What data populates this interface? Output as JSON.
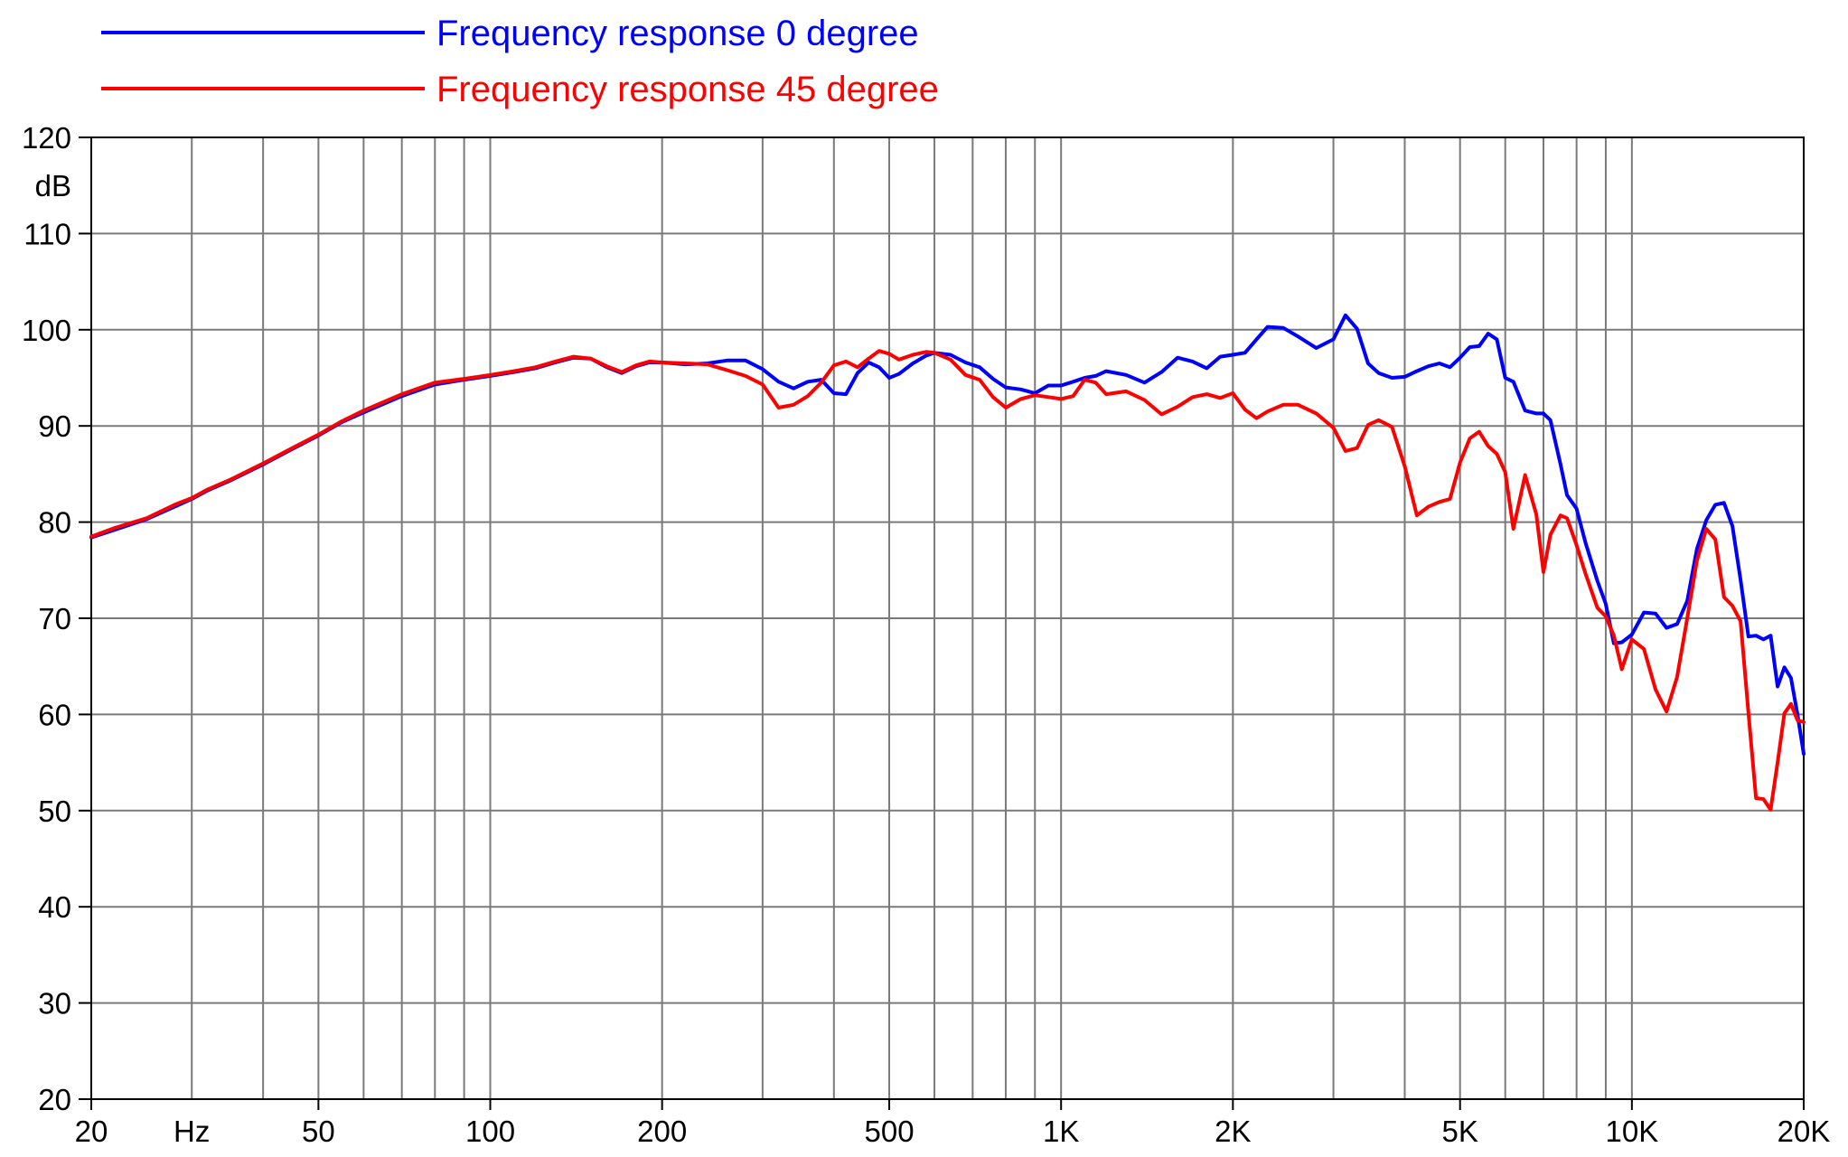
{
  "chart_data": {
    "type": "line",
    "xscale": "log",
    "xlim": [
      20,
      20000
    ],
    "ylim": [
      20,
      120
    ],
    "grid": true,
    "ylabel": "dB",
    "xlabel": "Hz",
    "yticks": [
      {
        "v": 120,
        "label": "120"
      },
      {
        "v": 110,
        "label": "110"
      },
      {
        "v": 100,
        "label": "100"
      },
      {
        "v": 90,
        "label": "90"
      },
      {
        "v": 80,
        "label": "80"
      },
      {
        "v": 70,
        "label": "70"
      },
      {
        "v": 60,
        "label": "60"
      },
      {
        "v": 50,
        "label": "50"
      },
      {
        "v": 40,
        "label": "40"
      },
      {
        "v": 30,
        "label": "30"
      },
      {
        "v": 20,
        "label": "20"
      }
    ],
    "xticks": [
      {
        "v": 20,
        "label": "20",
        "color": "#0000ff"
      },
      {
        "v": 50,
        "label": "50"
      },
      {
        "v": 100,
        "label": "100"
      },
      {
        "v": 200,
        "label": "200"
      },
      {
        "v": 500,
        "label": "500"
      },
      {
        "v": 1000,
        "label": "1K"
      },
      {
        "v": 2000,
        "label": "2K"
      },
      {
        "v": 5000,
        "label": "5K"
      },
      {
        "v": 10000,
        "label": "10K"
      },
      {
        "v": 20000,
        "label": "20K"
      }
    ],
    "xunit_label": {
      "text": "Hz",
      "at": 30,
      "color": "#0000ff"
    },
    "gridlines_x": [
      20,
      30,
      40,
      50,
      60,
      70,
      80,
      90,
      100,
      200,
      300,
      400,
      500,
      600,
      700,
      800,
      900,
      1000,
      2000,
      3000,
      4000,
      5000,
      6000,
      7000,
      8000,
      9000,
      10000,
      20000
    ],
    "legend_position": "top-left",
    "series": [
      {
        "name": "Frequency response 0 degree",
        "color": "#0000ff",
        "points": [
          [
            20,
            78.4
          ],
          [
            22,
            79.2
          ],
          [
            25,
            80.3
          ],
          [
            28,
            81.6
          ],
          [
            30,
            82.4
          ],
          [
            32,
            83.3
          ],
          [
            35,
            84.3
          ],
          [
            40,
            86.0
          ],
          [
            45,
            87.6
          ],
          [
            50,
            89.0
          ],
          [
            55,
            90.4
          ],
          [
            60,
            91.4
          ],
          [
            70,
            93.1
          ],
          [
            80,
            94.3
          ],
          [
            90,
            94.8
          ],
          [
            100,
            95.2
          ],
          [
            110,
            95.6
          ],
          [
            120,
            96.0
          ],
          [
            130,
            96.6
          ],
          [
            140,
            97.1
          ],
          [
            150,
            97.0
          ],
          [
            160,
            96.1
          ],
          [
            170,
            95.5
          ],
          [
            180,
            96.2
          ],
          [
            190,
            96.6
          ],
          [
            200,
            96.6
          ],
          [
            220,
            96.4
          ],
          [
            240,
            96.5
          ],
          [
            260,
            96.8
          ],
          [
            280,
            96.8
          ],
          [
            300,
            95.9
          ],
          [
            320,
            94.6
          ],
          [
            340,
            93.9
          ],
          [
            360,
            94.6
          ],
          [
            380,
            94.8
          ],
          [
            400,
            93.4
          ],
          [
            420,
            93.3
          ],
          [
            440,
            95.5
          ],
          [
            460,
            96.6
          ],
          [
            480,
            96.1
          ],
          [
            500,
            95.0
          ],
          [
            520,
            95.4
          ],
          [
            550,
            96.5
          ],
          [
            580,
            97.3
          ],
          [
            600,
            97.6
          ],
          [
            640,
            97.4
          ],
          [
            680,
            96.6
          ],
          [
            720,
            96.1
          ],
          [
            760,
            94.9
          ],
          [
            800,
            94.0
          ],
          [
            850,
            93.8
          ],
          [
            900,
            93.4
          ],
          [
            950,
            94.2
          ],
          [
            1000,
            94.2
          ],
          [
            1050,
            94.6
          ],
          [
            1100,
            95.0
          ],
          [
            1150,
            95.2
          ],
          [
            1200,
            95.7
          ],
          [
            1300,
            95.3
          ],
          [
            1400,
            94.5
          ],
          [
            1500,
            95.6
          ],
          [
            1600,
            97.1
          ],
          [
            1700,
            96.7
          ],
          [
            1800,
            96.0
          ],
          [
            1900,
            97.2
          ],
          [
            2000,
            97.4
          ],
          [
            2100,
            97.6
          ],
          [
            2200,
            99.0
          ],
          [
            2300,
            100.3
          ],
          [
            2450,
            100.2
          ],
          [
            2600,
            99.3
          ],
          [
            2800,
            98.1
          ],
          [
            3000,
            99.0
          ],
          [
            3150,
            101.5
          ],
          [
            3300,
            100.1
          ],
          [
            3450,
            96.5
          ],
          [
            3600,
            95.5
          ],
          [
            3800,
            95.0
          ],
          [
            4000,
            95.1
          ],
          [
            4200,
            95.7
          ],
          [
            4400,
            96.2
          ],
          [
            4600,
            96.5
          ],
          [
            4800,
            96.1
          ],
          [
            5000,
            97.1
          ],
          [
            5200,
            98.2
          ],
          [
            5400,
            98.3
          ],
          [
            5600,
            99.6
          ],
          [
            5800,
            99.0
          ],
          [
            6000,
            95.0
          ],
          [
            6200,
            94.6
          ],
          [
            6500,
            91.6
          ],
          [
            6800,
            91.3
          ],
          [
            7000,
            91.3
          ],
          [
            7200,
            90.6
          ],
          [
            7500,
            86.0
          ],
          [
            7700,
            82.8
          ],
          [
            8000,
            81.4
          ],
          [
            8300,
            77.8
          ],
          [
            8700,
            73.9
          ],
          [
            9000,
            71.5
          ],
          [
            9300,
            67.4
          ],
          [
            9600,
            67.5
          ],
          [
            10000,
            68.3
          ],
          [
            10500,
            70.6
          ],
          [
            11000,
            70.5
          ],
          [
            11500,
            69.0
          ],
          [
            12000,
            69.4
          ],
          [
            12500,
            71.8
          ],
          [
            13000,
            77.2
          ],
          [
            13500,
            80.2
          ],
          [
            14000,
            81.8
          ],
          [
            14500,
            82.0
          ],
          [
            15000,
            79.6
          ],
          [
            15500,
            74.0
          ],
          [
            16000,
            68.1
          ],
          [
            16500,
            68.2
          ],
          [
            17000,
            67.8
          ],
          [
            17500,
            68.2
          ],
          [
            18000,
            62.9
          ],
          [
            18500,
            64.9
          ],
          [
            19000,
            63.8
          ],
          [
            19500,
            60.0
          ],
          [
            20000,
            55.9
          ]
        ]
      },
      {
        "name": "Frequency response 45 degree",
        "color": "#ff0000",
        "points": [
          [
            20,
            78.5
          ],
          [
            22,
            79.4
          ],
          [
            25,
            80.4
          ],
          [
            28,
            81.8
          ],
          [
            30,
            82.5
          ],
          [
            32,
            83.4
          ],
          [
            35,
            84.4
          ],
          [
            40,
            86.1
          ],
          [
            45,
            87.7
          ],
          [
            50,
            89.1
          ],
          [
            55,
            90.5
          ],
          [
            60,
            91.6
          ],
          [
            70,
            93.3
          ],
          [
            80,
            94.5
          ],
          [
            90,
            94.9
          ],
          [
            100,
            95.3
          ],
          [
            110,
            95.7
          ],
          [
            120,
            96.1
          ],
          [
            130,
            96.7
          ],
          [
            140,
            97.2
          ],
          [
            150,
            97.0
          ],
          [
            160,
            96.2
          ],
          [
            170,
            95.6
          ],
          [
            180,
            96.3
          ],
          [
            190,
            96.7
          ],
          [
            200,
            96.6
          ],
          [
            220,
            96.5
          ],
          [
            240,
            96.4
          ],
          [
            260,
            95.8
          ],
          [
            280,
            95.2
          ],
          [
            300,
            94.3
          ],
          [
            320,
            91.9
          ],
          [
            340,
            92.2
          ],
          [
            360,
            93.1
          ],
          [
            380,
            94.5
          ],
          [
            400,
            96.3
          ],
          [
            420,
            96.7
          ],
          [
            440,
            96.1
          ],
          [
            460,
            97.0
          ],
          [
            480,
            97.8
          ],
          [
            500,
            97.5
          ],
          [
            520,
            96.9
          ],
          [
            550,
            97.4
          ],
          [
            580,
            97.7
          ],
          [
            600,
            97.6
          ],
          [
            640,
            96.9
          ],
          [
            680,
            95.3
          ],
          [
            720,
            94.8
          ],
          [
            760,
            93.0
          ],
          [
            800,
            91.9
          ],
          [
            850,
            92.8
          ],
          [
            900,
            93.2
          ],
          [
            950,
            93.0
          ],
          [
            1000,
            92.8
          ],
          [
            1050,
            93.1
          ],
          [
            1100,
            94.8
          ],
          [
            1150,
            94.5
          ],
          [
            1200,
            93.3
          ],
          [
            1300,
            93.6
          ],
          [
            1400,
            92.7
          ],
          [
            1500,
            91.2
          ],
          [
            1600,
            92.0
          ],
          [
            1700,
            93.0
          ],
          [
            1800,
            93.3
          ],
          [
            1900,
            92.9
          ],
          [
            2000,
            93.4
          ],
          [
            2100,
            91.7
          ],
          [
            2200,
            90.8
          ],
          [
            2300,
            91.5
          ],
          [
            2450,
            92.2
          ],
          [
            2600,
            92.2
          ],
          [
            2800,
            91.3
          ],
          [
            3000,
            89.8
          ],
          [
            3150,
            87.4
          ],
          [
            3300,
            87.7
          ],
          [
            3450,
            90.1
          ],
          [
            3600,
            90.6
          ],
          [
            3800,
            89.9
          ],
          [
            4000,
            85.8
          ],
          [
            4200,
            80.7
          ],
          [
            4400,
            81.6
          ],
          [
            4600,
            82.1
          ],
          [
            4800,
            82.4
          ],
          [
            5000,
            86.2
          ],
          [
            5200,
            88.7
          ],
          [
            5400,
            89.4
          ],
          [
            5600,
            87.9
          ],
          [
            5800,
            87.1
          ],
          [
            6000,
            85.2
          ],
          [
            6200,
            79.3
          ],
          [
            6500,
            84.9
          ],
          [
            6800,
            80.8
          ],
          [
            7000,
            74.8
          ],
          [
            7200,
            78.7
          ],
          [
            7500,
            80.7
          ],
          [
            7700,
            80.4
          ],
          [
            8000,
            77.6
          ],
          [
            8300,
            74.6
          ],
          [
            8700,
            71.1
          ],
          [
            9000,
            70.2
          ],
          [
            9300,
            68.2
          ],
          [
            9600,
            64.7
          ],
          [
            10000,
            67.8
          ],
          [
            10500,
            66.8
          ],
          [
            11000,
            62.6
          ],
          [
            11500,
            60.3
          ],
          [
            12000,
            63.9
          ],
          [
            12500,
            70.0
          ],
          [
            13000,
            76.0
          ],
          [
            13500,
            79.3
          ],
          [
            14000,
            78.2
          ],
          [
            14500,
            72.2
          ],
          [
            15000,
            71.3
          ],
          [
            15500,
            69.7
          ],
          [
            16000,
            60.2
          ],
          [
            16500,
            51.3
          ],
          [
            17000,
            51.2
          ],
          [
            17500,
            50.1
          ],
          [
            18000,
            55.0
          ],
          [
            18500,
            60.1
          ],
          [
            19000,
            61.1
          ],
          [
            19500,
            59.4
          ],
          [
            20000,
            59.2
          ]
        ]
      }
    ]
  }
}
